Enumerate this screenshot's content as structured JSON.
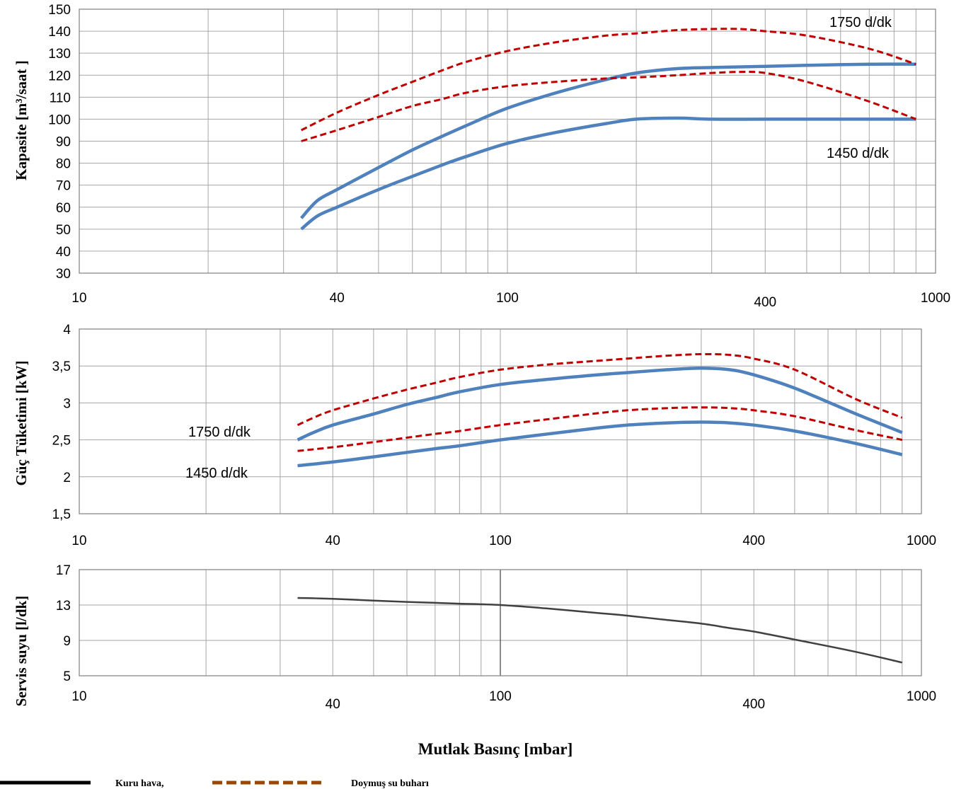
{
  "chart_data": [
    {
      "type": "line",
      "ylabel": "Kapasite [m³/saat ]",
      "xscale": "log",
      "xlim": [
        10,
        1000
      ],
      "ylim": [
        30,
        150
      ],
      "x_ticks": [
        "10",
        "40",
        "100",
        "400",
        "1000"
      ],
      "y_ticks": [
        "30",
        "40",
        "50",
        "60",
        "70",
        "80",
        "90",
        "100",
        "110",
        "120",
        "130",
        "140",
        "150"
      ],
      "annotations": [
        "1750 d/dk",
        "1450 d/dk"
      ],
      "series": [
        {
          "style": "dry",
          "x": [
            33,
            36,
            40,
            50,
            60,
            70,
            80,
            100,
            130,
            170,
            200,
            250,
            300,
            400,
            500,
            700,
            900
          ],
          "y": [
            55,
            63,
            68,
            78,
            86,
            92,
            97,
            105,
            112,
            118,
            121,
            123,
            123.5,
            124,
            124.5,
            125,
            125
          ]
        },
        {
          "style": "dry",
          "x": [
            33,
            36,
            40,
            50,
            60,
            70,
            80,
            100,
            130,
            170,
            200,
            250,
            300,
            400,
            500,
            700,
            900
          ],
          "y": [
            50,
            56,
            60,
            68,
            74,
            79,
            83,
            89,
            94,
            98,
            100,
            100.5,
            100,
            100,
            100,
            100,
            100
          ]
        },
        {
          "style": "vapor",
          "x": [
            33,
            40,
            50,
            60,
            70,
            80,
            100,
            130,
            170,
            200,
            250,
            300,
            350,
            400,
            500,
            700,
            900
          ],
          "y": [
            95,
            103,
            111,
            117,
            122,
            126,
            131,
            135,
            138,
            139,
            140.5,
            141,
            141,
            140,
            138,
            132,
            125
          ]
        },
        {
          "style": "vapor",
          "x": [
            33,
            40,
            50,
            60,
            70,
            80,
            100,
            130,
            170,
            200,
            250,
            300,
            350,
            400,
            500,
            700,
            900
          ],
          "y": [
            90,
            95,
            101,
            106,
            109,
            112,
            115,
            117,
            118.5,
            119,
            120,
            121,
            121.5,
            121,
            117,
            108,
            100
          ]
        }
      ]
    },
    {
      "type": "line",
      "ylabel": "Güç Tüketimi [kW]",
      "xscale": "log",
      "xlim": [
        10,
        1000
      ],
      "ylim": [
        1.5,
        4
      ],
      "x_ticks": [
        "10",
        "40",
        "100",
        "400",
        "1000"
      ],
      "y_ticks": [
        "1,5",
        "2",
        "2,5",
        "3",
        "3,5",
        "4"
      ],
      "annotations": [
        "1750 d/dk",
        "1450 d/dk"
      ],
      "series": [
        {
          "style": "dry",
          "x": [
            33,
            36,
            40,
            50,
            60,
            70,
            80,
            100,
            130,
            170,
            200,
            250,
            300,
            350,
            400,
            500,
            700,
            900
          ],
          "y": [
            2.5,
            2.6,
            2.7,
            2.85,
            2.98,
            3.07,
            3.15,
            3.25,
            3.32,
            3.38,
            3.41,
            3.45,
            3.47,
            3.45,
            3.38,
            3.2,
            2.85,
            2.6
          ]
        },
        {
          "style": "dry",
          "x": [
            33,
            40,
            50,
            60,
            70,
            80,
            100,
            130,
            170,
            200,
            250,
            300,
            350,
            400,
            500,
            700,
            900
          ],
          "y": [
            2.15,
            2.2,
            2.27,
            2.33,
            2.38,
            2.42,
            2.5,
            2.58,
            2.66,
            2.7,
            2.73,
            2.74,
            2.73,
            2.7,
            2.62,
            2.45,
            2.3
          ]
        },
        {
          "style": "vapor",
          "x": [
            33,
            36,
            40,
            50,
            60,
            70,
            80,
            100,
            130,
            170,
            200,
            250,
            300,
            350,
            400,
            500,
            700,
            900
          ],
          "y": [
            2.7,
            2.8,
            2.9,
            3.06,
            3.18,
            3.27,
            3.35,
            3.45,
            3.52,
            3.57,
            3.6,
            3.64,
            3.66,
            3.65,
            3.6,
            3.45,
            3.05,
            2.8
          ]
        },
        {
          "style": "vapor",
          "x": [
            33,
            40,
            50,
            60,
            70,
            80,
            100,
            130,
            170,
            200,
            250,
            300,
            350,
            400,
            500,
            700,
            900
          ],
          "y": [
            2.35,
            2.4,
            2.47,
            2.53,
            2.58,
            2.62,
            2.7,
            2.78,
            2.86,
            2.9,
            2.93,
            2.94,
            2.93,
            2.9,
            2.82,
            2.63,
            2.5
          ]
        }
      ]
    },
    {
      "type": "line",
      "ylabel": "Servis suyu [l/dk]",
      "xlabel": "Mutlak Basınç [mbar]",
      "xscale": "log",
      "xlim": [
        10,
        1000
      ],
      "ylim": [
        5,
        17
      ],
      "x_ticks": [
        "10",
        "40",
        "100",
        "400",
        "1000"
      ],
      "y_ticks": [
        "5",
        "9",
        "13",
        "17"
      ],
      "series": [
        {
          "style": "service",
          "x": [
            33,
            40,
            50,
            60,
            70,
            80,
            100,
            130,
            170,
            200,
            250,
            300,
            350,
            400,
            500,
            700,
            900
          ],
          "y": [
            13.8,
            13.7,
            13.5,
            13.35,
            13.25,
            13.15,
            13,
            12.6,
            12.1,
            11.8,
            11.3,
            10.9,
            10.4,
            10,
            9.1,
            7.7,
            6.5
          ]
        }
      ]
    }
  ],
  "legend": {
    "dry_label": "Kuru hava,",
    "vapor_label": "Doymuş su buharı"
  },
  "colors": {
    "dry": "#4f81bd",
    "vapor": "#c00000",
    "service": "#404040",
    "grid": "#a6a6a6",
    "legend_dry": "#000000",
    "legend_vapor": "#984807"
  }
}
